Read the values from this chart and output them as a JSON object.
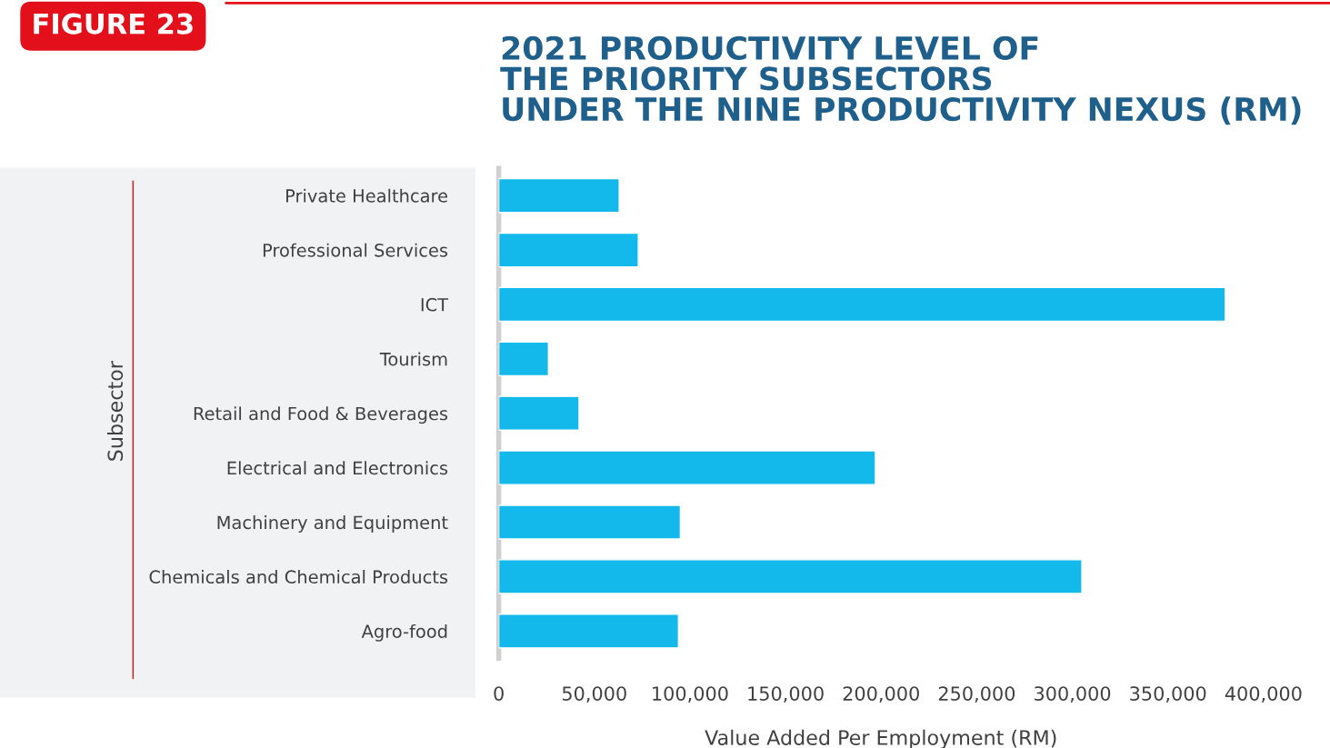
{
  "chart_data": {
    "type": "bar",
    "orientation": "horizontal",
    "title": "2021 PRODUCTIVITY LEVEL OF\nTHE PRIORITY SUBSECTORS\nUNDER THE NINE PRODUCTIVITY NEXUS (RM)",
    "xlabel": "Value Added Per Employment (RM)",
    "ylabel": "Subsector",
    "annotations": [
      "FIGURE 23"
    ],
    "categories": [
      "Private Healthcare",
      "Professional Services",
      "ICT",
      "Tourism",
      "Retail and Food & Beverages",
      "Electrical and Electronics",
      "Machinery and Equipment",
      "Chemicals and Chemical Products",
      "Agro-food"
    ],
    "values": [
      63000,
      73000,
      380000,
      26000,
      42000,
      197000,
      95000,
      305000,
      94000
    ],
    "color": "#12b9ea",
    "xlim": [
      0,
      400000
    ],
    "xticks": [
      0,
      {
        "value": 50000,
        "label": "50,000"
      },
      {
        "value": 100000,
        "label": "100,000"
      },
      {
        "value": 150000,
        "label": "150,000"
      },
      {
        "value": 200000,
        "label": "200,000"
      },
      {
        "value": 250000,
        "label": "250,000"
      },
      {
        "value": 300000,
        "label": "300,000"
      },
      {
        "value": 350000,
        "label": "350,000"
      },
      {
        "value": 400000,
        "label": "400,000"
      }
    ],
    "grid": false,
    "legend": false
  }
}
